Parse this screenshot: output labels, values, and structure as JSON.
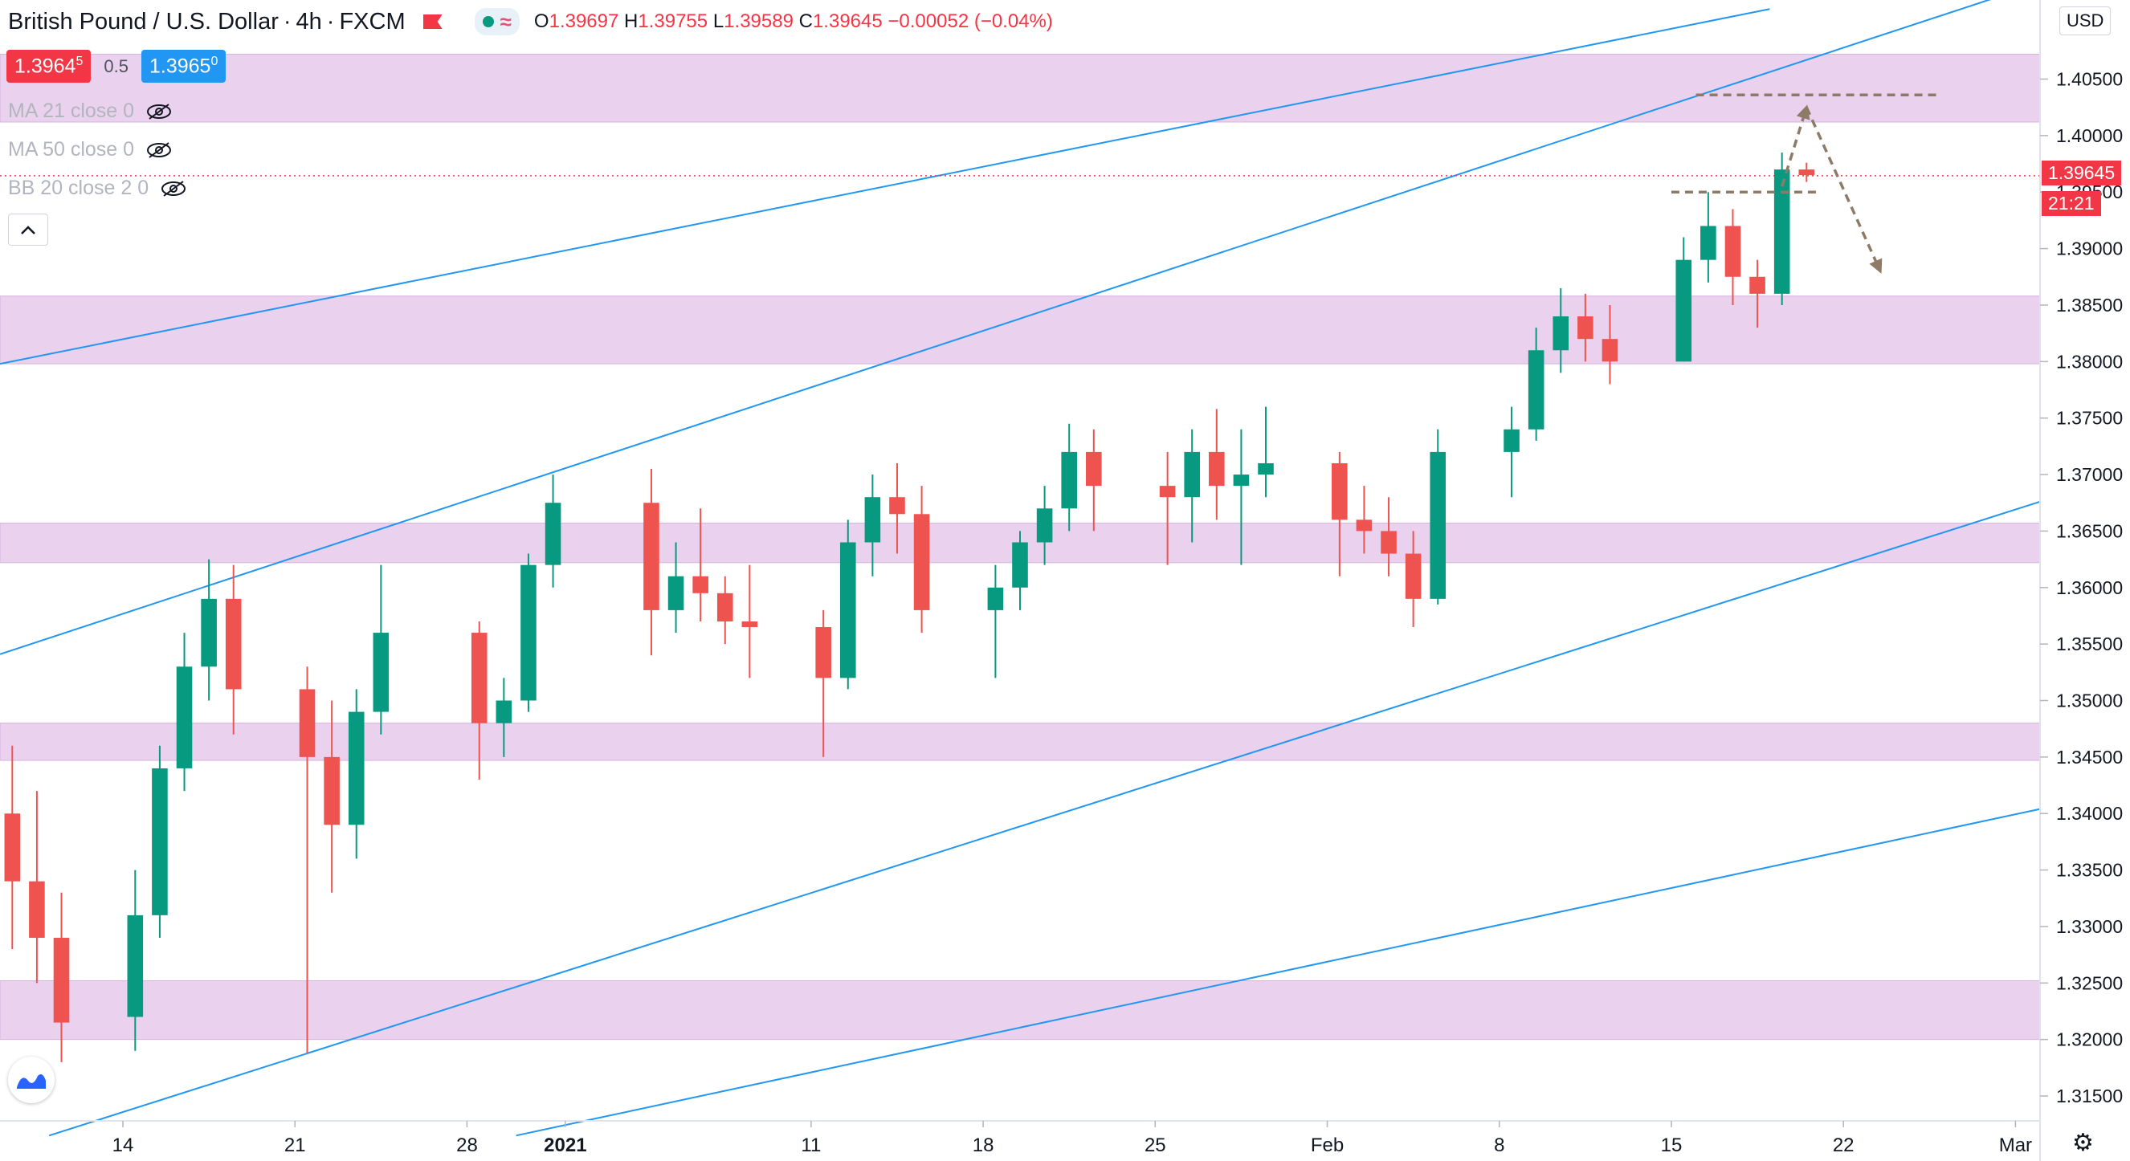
{
  "header": {
    "symbol": "British Pound / U.S. Dollar",
    "interval": "4h",
    "exchange": "FXCM",
    "ohlc": {
      "o_label": "O",
      "o": "1.39697",
      "h_label": "H",
      "h": "1.39755",
      "l_label": "L",
      "l": "1.39589",
      "c_label": "C",
      "c": "1.39645",
      "change": "−0.00052 (−0.04%)"
    },
    "bid_main": "1.3964",
    "bid_small": "5",
    "spread": "0.5",
    "ask_main": "1.3965",
    "ask_small": "0"
  },
  "indicators": [
    {
      "label": "MA 21 close 0"
    },
    {
      "label": "MA 50 close 0"
    },
    {
      "label": "BB 20 close 2 0"
    }
  ],
  "currency": "USD",
  "last_price_tag": "1.39645",
  "countdown_tag": "21:21",
  "icons": {
    "eye_off": "eye-off-icon",
    "collapse": "chevron-up-icon",
    "logo": "tradingview-logo-icon",
    "settings": "gear-icon",
    "flag": "flag-icon"
  },
  "colors": {
    "up": "#089981",
    "down": "#ef5350",
    "channel": "#2196f3",
    "zone": "#e1bee7",
    "arrow": "#8d7b68"
  },
  "chart_data": {
    "type": "candlestick",
    "y_axis": {
      "ticks": [
        "1.31500",
        "1.32000",
        "1.32500",
        "1.33000",
        "1.33500",
        "1.34000",
        "1.34500",
        "1.35000",
        "1.35500",
        "1.36000",
        "1.36500",
        "1.37000",
        "1.37500",
        "1.38000",
        "1.38500",
        "1.39000",
        "1.39500",
        "1.40000",
        "1.40500"
      ],
      "range": [
        1.3128,
        1.412
      ]
    },
    "x_axis": {
      "ticks": [
        "14",
        "21",
        "28",
        "2021",
        "11",
        "18",
        "25",
        "Feb",
        "8",
        "15",
        "22",
        "Mar"
      ],
      "range": [
        "2020-12-09",
        "2021-03-02"
      ]
    },
    "zones": [
      {
        "from": 1.4012,
        "to": 1.4072
      },
      {
        "from": 1.3798,
        "to": 1.3858
      },
      {
        "from": 1.3622,
        "to": 1.3657
      },
      {
        "from": 1.3447,
        "to": 1.348
      },
      {
        "from": 1.32,
        "to": 1.3252
      }
    ],
    "channel_lines": [
      {
        "from": [
          "2020-12-09",
          1.3798
        ],
        "to": [
          "2021-02-19",
          1.4112
        ]
      },
      {
        "from": [
          "2020-12-09",
          1.3541
        ],
        "to": [
          "2021-03-02",
          1.4135
        ]
      },
      {
        "from": [
          "2020-12-11",
          1.3115
        ],
        "to": [
          "2021-03-02",
          1.3676
        ]
      },
      {
        "from": [
          "2020-12-30",
          1.3115
        ],
        "to": [
          "2021-03-02",
          1.3404
        ]
      }
    ],
    "levels": [
      {
        "from": "2021-02-16",
        "to": "2021-02-26",
        "price": 1.4036
      },
      {
        "from": "2021-02-15",
        "to": "2021-02-21",
        "price": 1.395
      }
    ],
    "projection": [
      [
        "2021-02-19",
        1.3955
      ],
      [
        "2021-02-20",
        1.4025
      ],
      [
        "2021-02-23",
        1.388
      ]
    ],
    "last_price": 1.39645,
    "candles": [
      {
        "t": "2020-12-09",
        "o": 1.34,
        "h": 1.346,
        "l": 1.328,
        "c": 1.334
      },
      {
        "t": "2020-12-10",
        "o": 1.334,
        "h": 1.342,
        "l": 1.325,
        "c": 1.329
      },
      {
        "t": "2020-12-11",
        "o": 1.329,
        "h": 1.333,
        "l": 1.318,
        "c": 1.3215
      },
      {
        "t": "2020-12-14",
        "o": 1.322,
        "h": 1.335,
        "l": 1.319,
        "c": 1.331
      },
      {
        "t": "2020-12-15",
        "o": 1.331,
        "h": 1.346,
        "l": 1.329,
        "c": 1.344
      },
      {
        "t": "2020-12-16",
        "o": 1.344,
        "h": 1.356,
        "l": 1.342,
        "c": 1.353
      },
      {
        "t": "2020-12-17",
        "o": 1.353,
        "h": 1.3625,
        "l": 1.35,
        "c": 1.359
      },
      {
        "t": "2020-12-18",
        "o": 1.359,
        "h": 1.362,
        "l": 1.347,
        "c": 1.351
      },
      {
        "t": "2020-12-21",
        "o": 1.351,
        "h": 1.353,
        "l": 1.3188,
        "c": 1.345
      },
      {
        "t": "2020-12-22",
        "o": 1.345,
        "h": 1.35,
        "l": 1.333,
        "c": 1.339
      },
      {
        "t": "2020-12-23",
        "o": 1.339,
        "h": 1.351,
        "l": 1.336,
        "c": 1.349
      },
      {
        "t": "2020-12-24",
        "o": 1.349,
        "h": 1.362,
        "l": 1.347,
        "c": 1.356
      },
      {
        "t": "2020-12-28",
        "o": 1.356,
        "h": 1.357,
        "l": 1.343,
        "c": 1.348
      },
      {
        "t": "2020-12-29",
        "o": 1.348,
        "h": 1.352,
        "l": 1.345,
        "c": 1.35
      },
      {
        "t": "2020-12-30",
        "o": 1.35,
        "h": 1.363,
        "l": 1.349,
        "c": 1.362
      },
      {
        "t": "2020-12-31",
        "o": 1.362,
        "h": 1.37,
        "l": 1.36,
        "c": 1.3675
      },
      {
        "t": "2021-01-04",
        "o": 1.3675,
        "h": 1.3705,
        "l": 1.354,
        "c": 1.358
      },
      {
        "t": "2021-01-05",
        "o": 1.358,
        "h": 1.364,
        "l": 1.356,
        "c": 1.361
      },
      {
        "t": "2021-01-06",
        "o": 1.361,
        "h": 1.367,
        "l": 1.357,
        "c": 1.3595
      },
      {
        "t": "2021-01-07",
        "o": 1.3595,
        "h": 1.361,
        "l": 1.355,
        "c": 1.357
      },
      {
        "t": "2021-01-08",
        "o": 1.357,
        "h": 1.362,
        "l": 1.352,
        "c": 1.3565
      },
      {
        "t": "2021-01-11",
        "o": 1.3565,
        "h": 1.358,
        "l": 1.345,
        "c": 1.352
      },
      {
        "t": "2021-01-12",
        "o": 1.352,
        "h": 1.366,
        "l": 1.351,
        "c": 1.364
      },
      {
        "t": "2021-01-13",
        "o": 1.364,
        "h": 1.37,
        "l": 1.361,
        "c": 1.368
      },
      {
        "t": "2021-01-14",
        "o": 1.368,
        "h": 1.371,
        "l": 1.363,
        "c": 1.3665
      },
      {
        "t": "2021-01-15",
        "o": 1.3665,
        "h": 1.369,
        "l": 1.356,
        "c": 1.358
      },
      {
        "t": "2021-01-18",
        "o": 1.358,
        "h": 1.362,
        "l": 1.352,
        "c": 1.36
      },
      {
        "t": "2021-01-19",
        "o": 1.36,
        "h": 1.365,
        "l": 1.358,
        "c": 1.364
      },
      {
        "t": "2021-01-20",
        "o": 1.364,
        "h": 1.369,
        "l": 1.362,
        "c": 1.367
      },
      {
        "t": "2021-01-21",
        "o": 1.367,
        "h": 1.3745,
        "l": 1.365,
        "c": 1.372
      },
      {
        "t": "2021-01-22",
        "o": 1.372,
        "h": 1.374,
        "l": 1.365,
        "c": 1.369
      },
      {
        "t": "2021-01-25",
        "o": 1.369,
        "h": 1.372,
        "l": 1.362,
        "c": 1.368
      },
      {
        "t": "2021-01-26",
        "o": 1.368,
        "h": 1.374,
        "l": 1.364,
        "c": 1.372
      },
      {
        "t": "2021-01-27",
        "o": 1.372,
        "h": 1.3758,
        "l": 1.366,
        "c": 1.369
      },
      {
        "t": "2021-01-28",
        "o": 1.369,
        "h": 1.374,
        "l": 1.362,
        "c": 1.37
      },
      {
        "t": "2021-01-29",
        "o": 1.37,
        "h": 1.376,
        "l": 1.368,
        "c": 1.371
      },
      {
        "t": "2021-02-01",
        "o": 1.371,
        "h": 1.372,
        "l": 1.361,
        "c": 1.366
      },
      {
        "t": "2021-02-02",
        "o": 1.366,
        "h": 1.369,
        "l": 1.363,
        "c": 1.365
      },
      {
        "t": "2021-02-03",
        "o": 1.365,
        "h": 1.368,
        "l": 1.361,
        "c": 1.363
      },
      {
        "t": "2021-02-04",
        "o": 1.363,
        "h": 1.365,
        "l": 1.3565,
        "c": 1.359
      },
      {
        "t": "2021-02-05",
        "o": 1.359,
        "h": 1.374,
        "l": 1.3585,
        "c": 1.372
      },
      {
        "t": "2021-02-08",
        "o": 1.372,
        "h": 1.376,
        "l": 1.368,
        "c": 1.374
      },
      {
        "t": "2021-02-09",
        "o": 1.374,
        "h": 1.383,
        "l": 1.373,
        "c": 1.381
      },
      {
        "t": "2021-02-10",
        "o": 1.381,
        "h": 1.3865,
        "l": 1.379,
        "c": 1.384
      },
      {
        "t": "2021-02-11",
        "o": 1.384,
        "h": 1.386,
        "l": 1.38,
        "c": 1.382
      },
      {
        "t": "2021-02-12",
        "o": 1.382,
        "h": 1.385,
        "l": 1.378,
        "c": 1.38
      },
      {
        "t": "2021-02-15",
        "o": 1.38,
        "h": 1.391,
        "l": 1.38,
        "c": 1.389
      },
      {
        "t": "2021-02-16",
        "o": 1.389,
        "h": 1.395,
        "l": 1.387,
        "c": 1.392
      },
      {
        "t": "2021-02-17",
        "o": 1.392,
        "h": 1.3935,
        "l": 1.385,
        "c": 1.3875
      },
      {
        "t": "2021-02-18",
        "o": 1.3875,
        "h": 1.389,
        "l": 1.383,
        "c": 1.386
      },
      {
        "t": "2021-02-19",
        "o": 1.386,
        "h": 1.3985,
        "l": 1.385,
        "c": 1.397
      },
      {
        "t": "2021-02-20",
        "o": 1.397,
        "h": 1.3976,
        "l": 1.3959,
        "c": 1.3965
      }
    ]
  }
}
